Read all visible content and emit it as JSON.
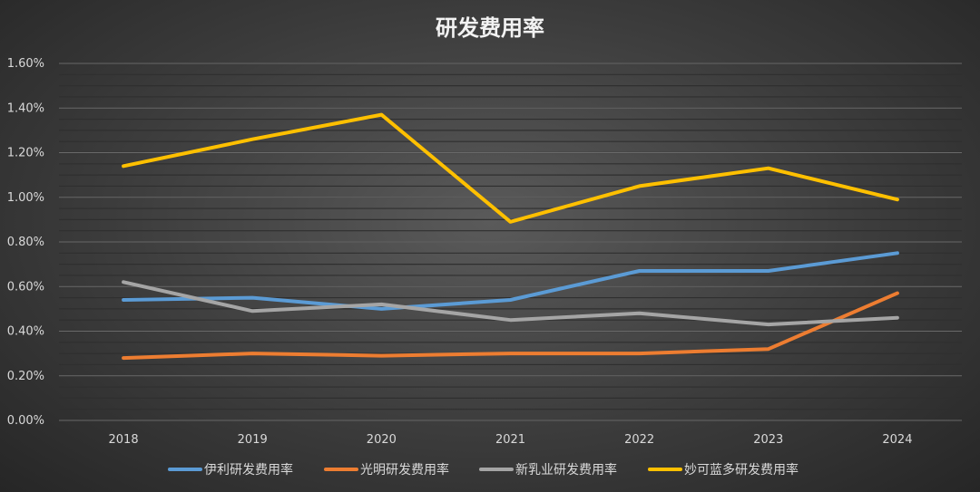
{
  "chart_data": {
    "type": "line",
    "title": "研发费用率",
    "categories": [
      "2018",
      "2019",
      "2020",
      "2021",
      "2022",
      "2023",
      "2024"
    ],
    "ylim": [
      0,
      1.6
    ],
    "yticks": [
      "0.00%",
      "0.20%",
      "0.40%",
      "0.60%",
      "0.80%",
      "1.00%",
      "1.20%",
      "1.40%",
      "1.60%"
    ],
    "grid": true,
    "legend_position": "bottom",
    "series": [
      {
        "name": "伊利研发费用率",
        "color": "#5b9bd5",
        "values": [
          0.54,
          0.55,
          0.5,
          0.54,
          0.67,
          0.67,
          0.75
        ]
      },
      {
        "name": "光明研发费用率",
        "color": "#ed7d31",
        "values": [
          0.28,
          0.3,
          0.29,
          0.3,
          0.3,
          0.32,
          0.57
        ]
      },
      {
        "name": "新乳业研发费用率",
        "color": "#a5a5a5",
        "values": [
          0.62,
          0.49,
          0.52,
          0.45,
          0.48,
          0.43,
          0.46
        ]
      },
      {
        "name": "妙可蓝多研发费用率",
        "color": "#ffc000",
        "values": [
          1.14,
          1.26,
          1.37,
          0.89,
          1.05,
          1.13,
          0.99
        ]
      }
    ]
  }
}
